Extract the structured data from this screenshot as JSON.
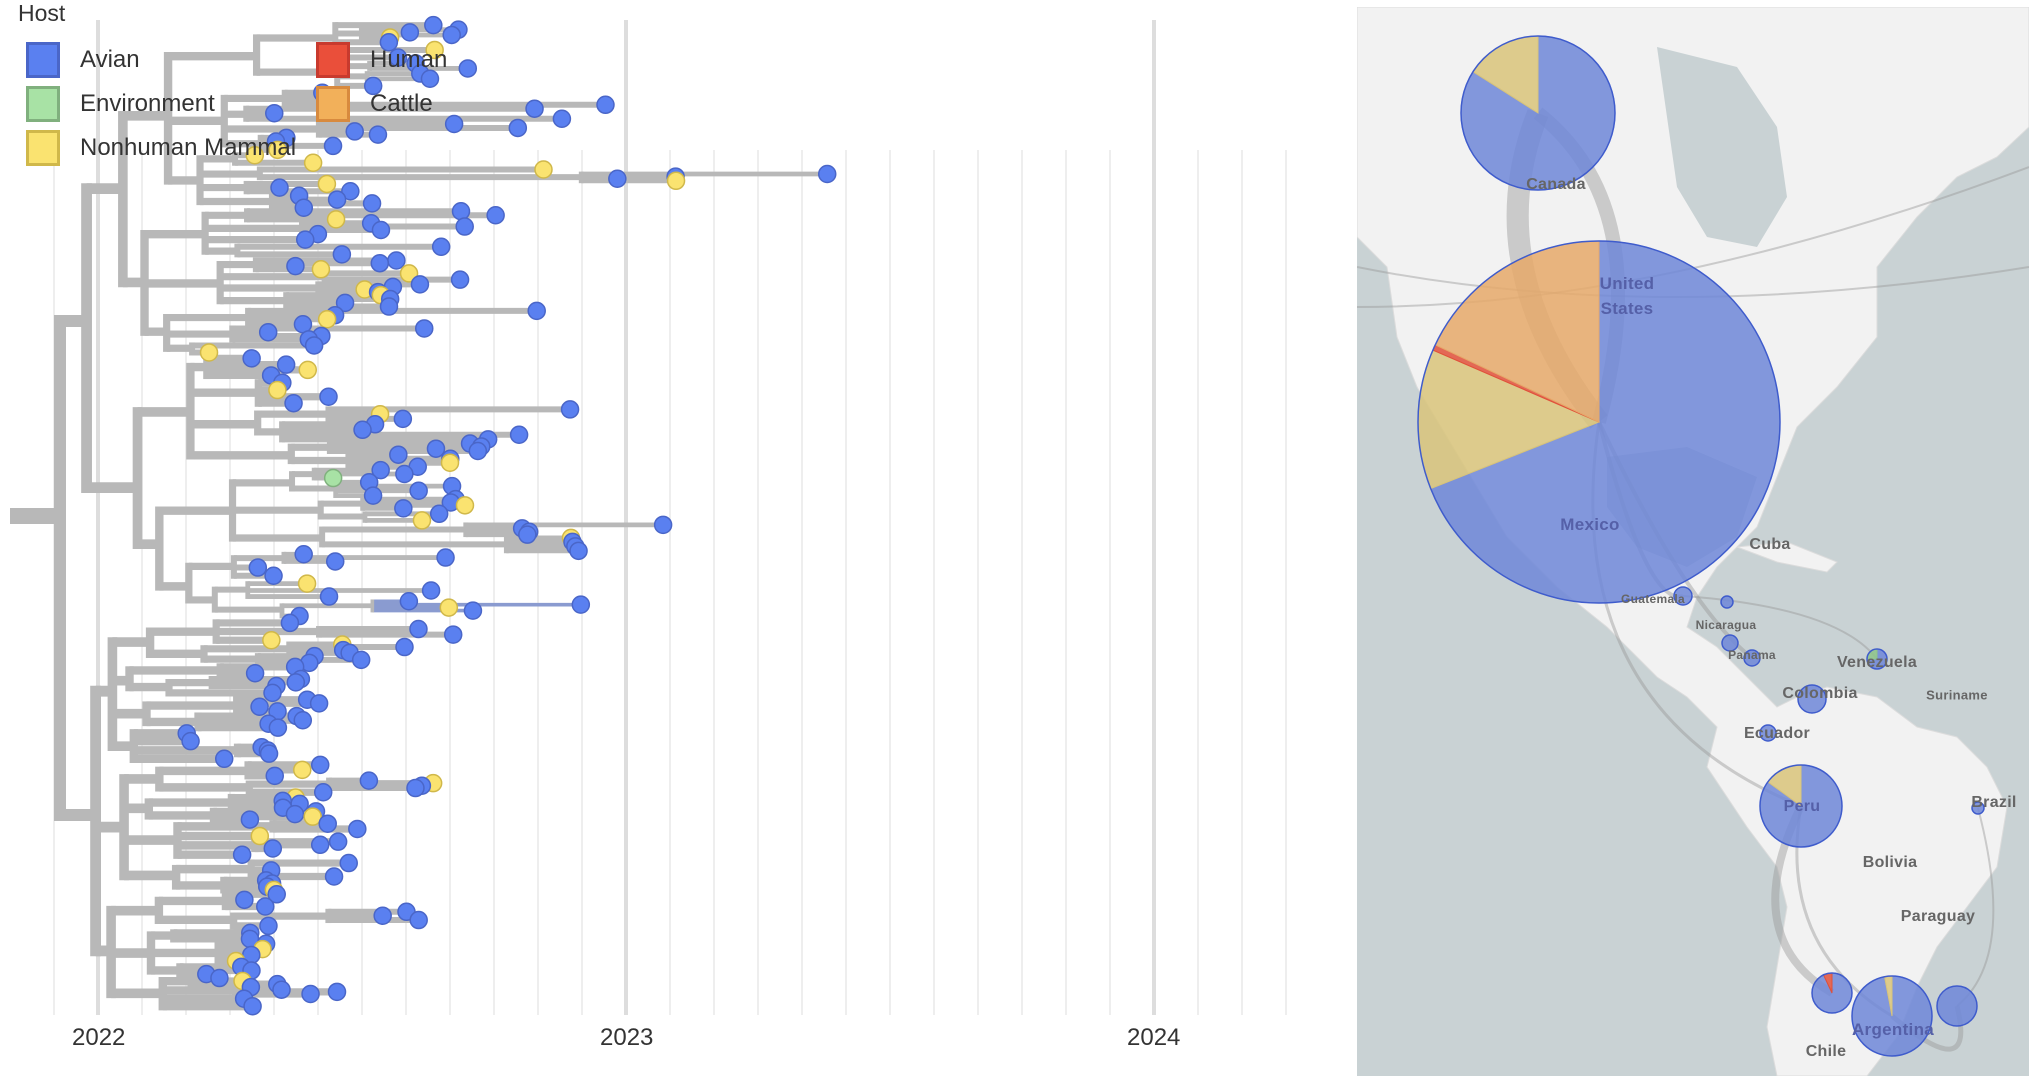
{
  "legend": {
    "title": "Host",
    "items": [
      {
        "label": "Avian",
        "color": "#5a80f0",
        "border": "#4a66c8"
      },
      {
        "label": "Human",
        "color": "#ea4f3a",
        "border": "#c83a2e"
      },
      {
        "label": "Environment",
        "color": "#a8e2a5",
        "border": "#80b07e"
      },
      {
        "label": "Cattle",
        "color": "#f2b05a",
        "border": "#d88a3e"
      },
      {
        "label": "Nonhuman Mammal",
        "color": "#fae370",
        "border": "#d0b84a"
      }
    ]
  },
  "axis": {
    "years": [
      "2022",
      "2023",
      "2024"
    ]
  },
  "map": {
    "labels": {
      "canada": "Canada",
      "united": "United",
      "states": "States",
      "mexico": "Mexico",
      "cuba": "Cuba",
      "guatemala": "Guatemala",
      "nicaragua": "Nicaragua",
      "panama": "Panama",
      "venezuela": "Venezuela",
      "colombia": "Colombia",
      "suriname": "Suriname",
      "ecuador": "Ecuador",
      "peru": "Peru",
      "brazil": "Brazil",
      "bolivia": "Bolivia",
      "paraguay": "Paraguay",
      "argentina": "Argentina",
      "chile": "Chile"
    },
    "pies": [
      {
        "name": "canada",
        "slices": [
          {
            "host": "Avian",
            "frac": 0.84
          },
          {
            "host": "Nonhuman Mammal",
            "frac": 0.16
          }
        ]
      },
      {
        "name": "united-states",
        "slices": [
          {
            "host": "Avian",
            "frac": 0.69
          },
          {
            "host": "Nonhuman Mammal",
            "frac": 0.125
          },
          {
            "host": "Human",
            "frac": 0.005
          },
          {
            "host": "Cattle",
            "frac": 0.18
          }
        ]
      },
      {
        "name": "guatemala",
        "slices": [
          {
            "host": "Avian",
            "frac": 1
          }
        ]
      },
      {
        "name": "honduras",
        "slices": [
          {
            "host": "Avian",
            "frac": 1
          }
        ]
      },
      {
        "name": "nicaragua",
        "slices": [
          {
            "host": "Avian",
            "frac": 1
          }
        ]
      },
      {
        "name": "panama",
        "slices": [
          {
            "host": "Avian",
            "frac": 1
          }
        ]
      },
      {
        "name": "venezuela",
        "slices": [
          {
            "host": "Avian",
            "frac": 0.75
          },
          {
            "host": "Environment",
            "frac": 0.25
          }
        ]
      },
      {
        "name": "colombia",
        "slices": [
          {
            "host": "Avian",
            "frac": 1
          }
        ]
      },
      {
        "name": "ecuador",
        "slices": [
          {
            "host": "Avian",
            "frac": 1
          }
        ]
      },
      {
        "name": "peru",
        "slices": [
          {
            "host": "Avian",
            "frac": 0.85
          },
          {
            "host": "Nonhuman Mammal",
            "frac": 0.15
          }
        ]
      },
      {
        "name": "brazil",
        "slices": [
          {
            "host": "Avian",
            "frac": 1
          }
        ]
      },
      {
        "name": "chile",
        "slices": [
          {
            "host": "Avian",
            "frac": 0.93
          },
          {
            "host": "Human",
            "frac": 0.07
          }
        ]
      },
      {
        "name": "argentina",
        "slices": [
          {
            "host": "Avian",
            "frac": 0.97
          },
          {
            "host": "Nonhuman Mammal",
            "frac": 0.03
          }
        ]
      },
      {
        "name": "uruguay",
        "slices": [
          {
            "host": "Avian",
            "frac": 1
          }
        ]
      }
    ]
  }
}
